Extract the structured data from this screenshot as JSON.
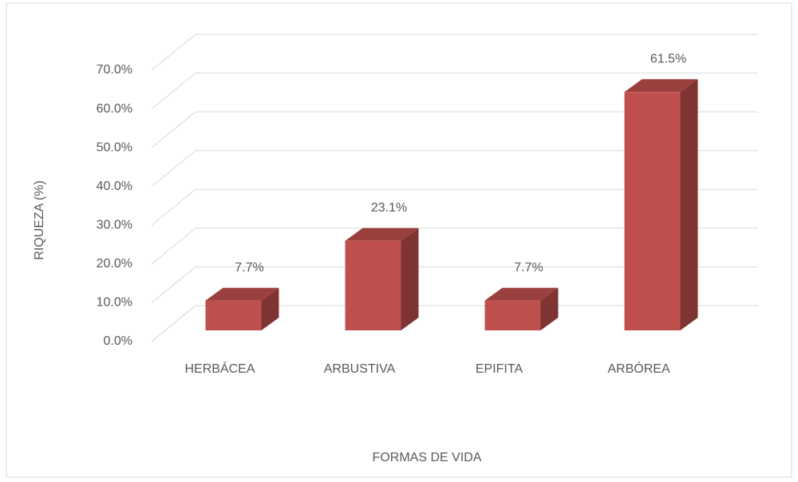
{
  "chart_data": {
    "type": "bar3d",
    "categories": [
      "HERBÁCEA",
      "ARBUSTIVA",
      "EPIFITA",
      "ARBÓREA"
    ],
    "values": [
      7.7,
      23.1,
      7.7,
      61.5
    ],
    "value_labels": [
      "7.7%",
      "23.1%",
      "7.7%",
      "61.5%"
    ],
    "color": "#c0504d",
    "ylim": [
      0,
      70
    ],
    "yticks": [
      {
        "value": 0,
        "label": "0.0%"
      },
      {
        "value": 10,
        "label": "10.0%"
      },
      {
        "value": 20,
        "label": "20.0%"
      },
      {
        "value": 30,
        "label": "30.0%"
      },
      {
        "value": 40,
        "label": "40.0%"
      },
      {
        "value": 50,
        "label": "50.0%"
      },
      {
        "value": 60,
        "label": "60.0%"
      },
      {
        "value": 70,
        "label": "70.0%"
      }
    ],
    "ylabel": "RIQUEZA (%)",
    "xlabel": "FORMAS DE VIDA",
    "grid": true
  }
}
